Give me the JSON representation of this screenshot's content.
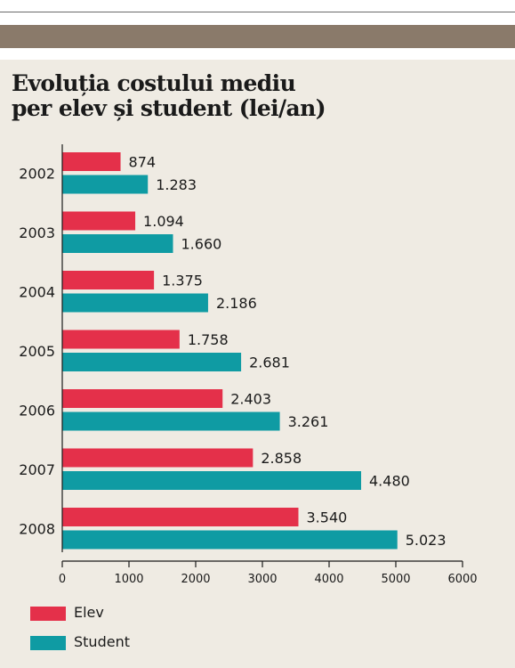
{
  "colors": {
    "panel_bg": "#efebe3",
    "elev": "#e4304a",
    "student": "#0f9ba3",
    "band": "#8a7a6a"
  },
  "chart_data": {
    "type": "bar",
    "orientation": "horizontal",
    "title_lines": [
      "Evoluția costului mediu",
      "per elev și student (lei/an)"
    ],
    "categories": [
      "2002",
      "2003",
      "2004",
      "2005",
      "2006",
      "2007",
      "2008"
    ],
    "series": [
      {
        "name": "Elev",
        "color": "#e4304a",
        "values": [
          874,
          1094,
          1375,
          1758,
          2403,
          2858,
          3540
        ],
        "labels": [
          "874",
          "1.094",
          "1.375",
          "1.758",
          "2.403",
          "2.858",
          "3.540"
        ]
      },
      {
        "name": "Student",
        "color": "#0f9ba3",
        "values": [
          1283,
          1660,
          2186,
          2681,
          3261,
          4480,
          5023
        ],
        "labels": [
          "1.283",
          "1.660",
          "2.186",
          "2.681",
          "3.261",
          "4.480",
          "5.023"
        ]
      }
    ],
    "xlim": [
      0,
      6000
    ],
    "xticks": [
      0,
      1000,
      2000,
      3000,
      4000,
      5000,
      6000
    ],
    "xtick_labels": [
      "0",
      "1000",
      "2000",
      "3000",
      "4000",
      "5000",
      "6000"
    ],
    "legend_position": "bottom-left",
    "grid": false
  }
}
